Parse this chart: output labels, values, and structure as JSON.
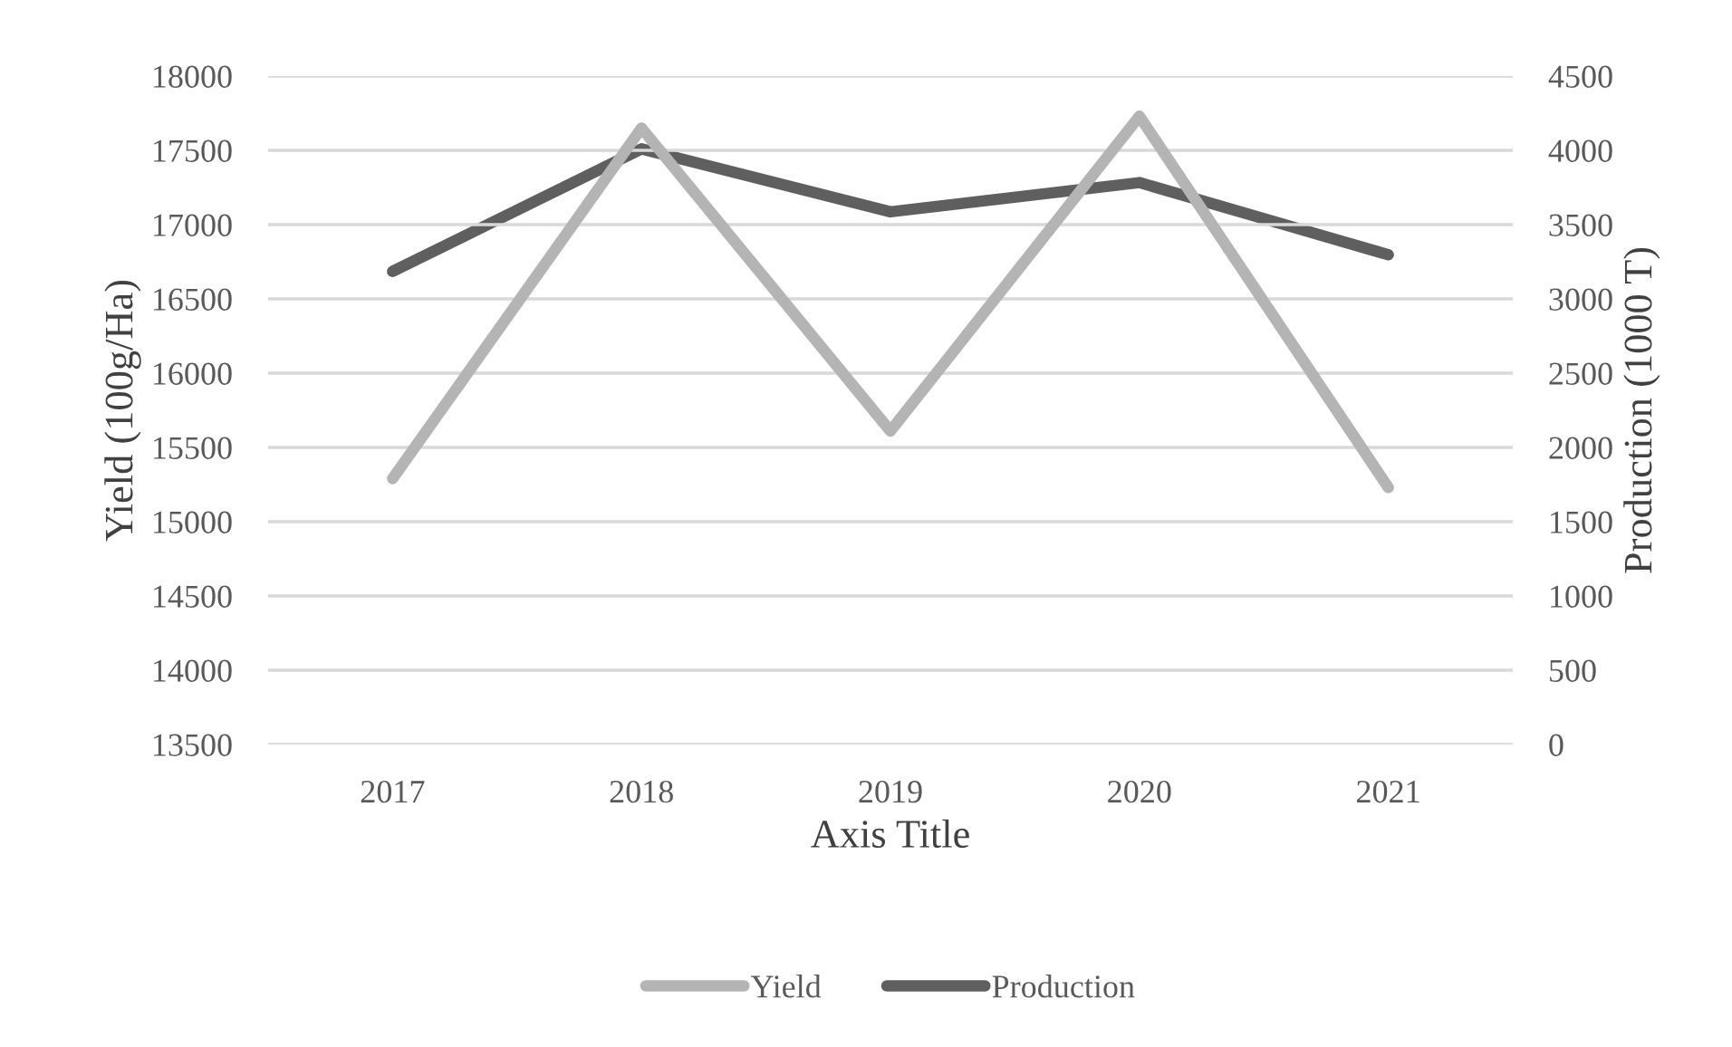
{
  "chart_data": {
    "type": "line",
    "xlabel": "Axis Title",
    "ylabel": "Yield (100g/Ha)",
    "y2label": "Production (1000 T)",
    "categories": [
      "2017",
      "2018",
      "2019",
      "2020",
      "2021"
    ],
    "series": [
      {
        "name": "Yield",
        "color": "#b4b4b4",
        "values": [
          15290,
          17650,
          15610,
          17730,
          15230
        ]
      },
      {
        "name": "Production",
        "color": "#5f5f5f",
        "axis": "y2",
        "values": [
          3185,
          4010,
          3586,
          3783,
          3297
        ]
      }
    ],
    "ylim": [
      13500,
      18000
    ],
    "yticks": [
      13500,
      14000,
      14500,
      15000,
      15500,
      16000,
      16500,
      17000,
      17500,
      18000
    ],
    "y2lim": [
      0,
      4500
    ],
    "y2ticks": [
      0,
      500,
      1000,
      1500,
      2000,
      2500,
      3000,
      3500,
      4000,
      4500
    ],
    "grid": "y",
    "legend": "bottom"
  }
}
